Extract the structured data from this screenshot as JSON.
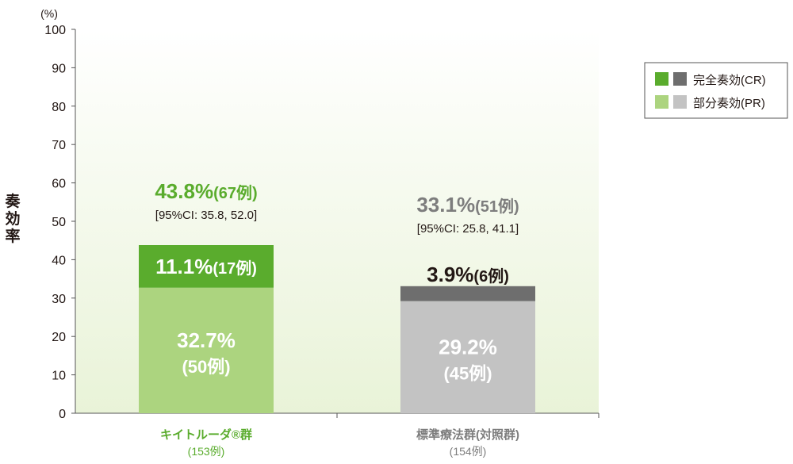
{
  "chart_data": {
    "type": "bar",
    "stacked": true,
    "unit_label": "(%)",
    "ylabel": "奏効率",
    "ylim": [
      0,
      100
    ],
    "yticks": [
      0,
      10,
      20,
      30,
      40,
      50,
      60,
      70,
      80,
      90,
      100
    ],
    "categories": [
      {
        "label": "キイトルーダ®群",
        "sub": "(153例)",
        "color": "#5aac2d"
      },
      {
        "label": "標準療法群(対照群)",
        "sub": "(154例)",
        "color": "#7d7d7d"
      }
    ],
    "series": [
      {
        "name": "部分奏効(PR)",
        "values": [
          32.7,
          29.2
        ],
        "colors": [
          "#acd47f",
          "#c3c3c3"
        ],
        "labels": [
          {
            "pct": "32.7%",
            "n": "(50例)"
          },
          {
            "pct": "29.2%",
            "n": "(45例)"
          }
        ]
      },
      {
        "name": "完全奏効(CR)",
        "values": [
          11.1,
          3.9
        ],
        "colors": [
          "#5aac2d",
          "#6e6e6e"
        ],
        "labels": [
          {
            "pct": "11.1%",
            "n": "(17例)"
          },
          {
            "pct": "3.9%",
            "n": "(6例)"
          }
        ]
      }
    ],
    "totals": [
      {
        "value": 43.8,
        "pct": "43.8%",
        "n": "(67例)",
        "ci": "[95%CI: 35.8, 52.0]",
        "color": "#5aac2d"
      },
      {
        "value": 33.1,
        "pct": "33.1%",
        "n": "(51例)",
        "ci": "[95%CI: 25.8, 41.1]",
        "color": "#7d7d7d"
      }
    ],
    "legend": {
      "position": "top-right"
    },
    "background_gradient": [
      "#ffffff",
      "#e9f3d8"
    ]
  }
}
